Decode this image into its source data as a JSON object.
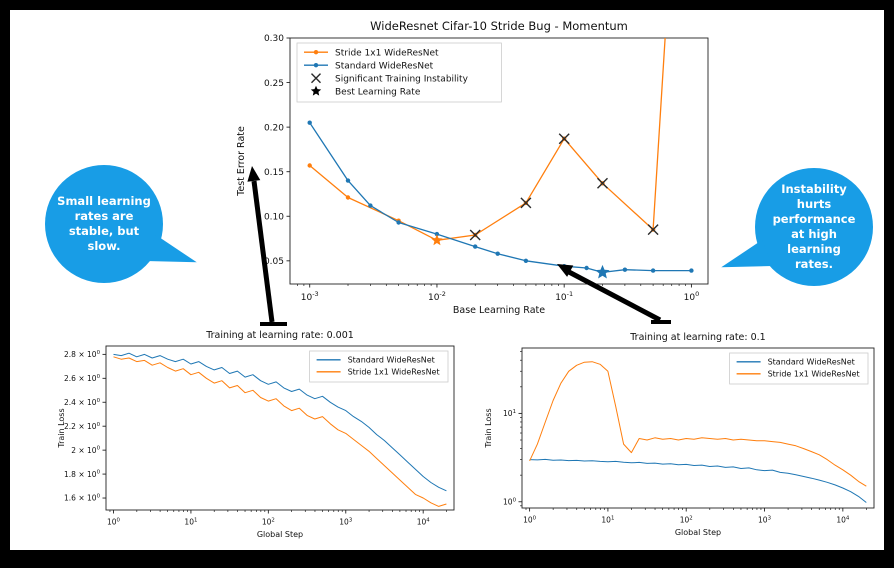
{
  "colors": {
    "stride_orange": "#ff7f0e",
    "standard_blue": "#1f77b4",
    "instability_marker": "#2b2b2b",
    "best_marker": "#000000",
    "bubble": "#189de6",
    "bubble_text": "#ffffff",
    "frame": "#000000",
    "slide_bg": "#ffffff"
  },
  "bubbles": {
    "left": {
      "text": "Small learning rates are stable, but slow."
    },
    "right": {
      "text": "Instability hurts performance at high learning rates."
    }
  },
  "chart_data": [
    {
      "id": "main",
      "type": "line",
      "title": "WideResnet Cifar-10 Stride Bug - Momentum",
      "xlabel": "Base Learning Rate",
      "ylabel": "Test Error Rate",
      "xscale": "log",
      "yscale": "linear",
      "xlim": [
        0.0007,
        1.35
      ],
      "ylim": [
        0.024,
        0.3
      ],
      "xticks": [
        {
          "v": 0.001,
          "exp": "-3"
        },
        {
          "v": 0.01,
          "exp": "-2"
        },
        {
          "v": 0.1,
          "exp": "-1"
        },
        {
          "v": 1,
          "exp": "0"
        }
      ],
      "yticks": [
        {
          "v": 0.05,
          "label": "0.05"
        },
        {
          "v": 0.1,
          "label": "0.10"
        },
        {
          "v": 0.15,
          "label": "0.15"
        },
        {
          "v": 0.2,
          "label": "0.20"
        },
        {
          "v": 0.25,
          "label": "0.25"
        },
        {
          "v": 0.3,
          "label": "0.30"
        }
      ],
      "legend": {
        "pos": "tl",
        "items": [
          {
            "label": "Stride 1x1 WideResNet",
            "color": "#ff7f0e",
            "marker": "dotline"
          },
          {
            "label": "Standard WideResNet",
            "color": "#1f77b4",
            "marker": "dotline"
          },
          {
            "label": "Significant Training Instability",
            "color": "#2b2b2b",
            "marker": "x"
          },
          {
            "label": "Best Learning Rate",
            "color": "#000000",
            "marker": "star"
          }
        ]
      },
      "series": [
        {
          "name": "Stride 1x1 WideResNet",
          "color": "#ff7f0e",
          "marker": "dot",
          "x": [
            0.001,
            0.002,
            0.005,
            0.01,
            0.02,
            0.05,
            0.1,
            0.2,
            0.5,
            0.8
          ],
          "y": [
            0.157,
            0.121,
            0.095,
            0.073,
            0.079,
            0.115,
            0.187,
            0.137,
            0.085,
            0.55
          ]
        },
        {
          "name": "Standard WideResNet",
          "color": "#1f77b4",
          "marker": "dot",
          "x": [
            0.001,
            0.002,
            0.003,
            0.005,
            0.01,
            0.02,
            0.03,
            0.05,
            0.1,
            0.15,
            0.2,
            0.3,
            0.5,
            1.0
          ],
          "y": [
            0.205,
            0.14,
            0.112,
            0.093,
            0.08,
            0.066,
            0.058,
            0.05,
            0.044,
            0.042,
            0.037,
            0.04,
            0.039,
            0.039
          ]
        }
      ],
      "x_markers": [
        [
          0.02,
          0.079
        ],
        [
          0.05,
          0.115
        ],
        [
          0.1,
          0.187
        ],
        [
          0.2,
          0.137
        ],
        [
          0.5,
          0.085
        ]
      ],
      "stars": [
        {
          "x": 0.01,
          "y": 0.073,
          "color": "#ff7f0e",
          "r": 6
        },
        {
          "x": 0.2,
          "y": 0.037,
          "color": "#1f77b4",
          "r": 7.5
        }
      ]
    },
    {
      "id": "lr001",
      "type": "line",
      "title": "Training at learning rate: 0.001",
      "xlabel": "Global Step",
      "ylabel": "Train Loss",
      "xscale": "log",
      "yscale": "linear",
      "xlim": [
        0.8,
        25000
      ],
      "ylim": [
        1.5,
        2.87
      ],
      "xticks": [
        {
          "v": 1,
          "exp": "0"
        },
        {
          "v": 10,
          "exp": "1"
        },
        {
          "v": 100,
          "exp": "2"
        },
        {
          "v": 1000,
          "exp": "3"
        },
        {
          "v": 10000,
          "exp": "4"
        }
      ],
      "yticks": [
        {
          "v": 1.6,
          "mant": "1.6",
          "exp": "0"
        },
        {
          "v": 1.8,
          "mant": "1.8",
          "exp": "0"
        },
        {
          "v": 2.0,
          "mant": "2",
          "exp": "0"
        },
        {
          "v": 2.2,
          "mant": "2.2",
          "exp": "0"
        },
        {
          "v": 2.4,
          "mant": "2.4",
          "exp": "0"
        },
        {
          "v": 2.6,
          "mant": "2.6",
          "exp": "0"
        },
        {
          "v": 2.8,
          "mant": "2.8",
          "exp": "0"
        }
      ],
      "legend": {
        "pos": "tr",
        "items": [
          {
            "label": "Standard WideResNet",
            "color": "#1f77b4",
            "marker": "line"
          },
          {
            "label": "Stride 1x1 WideResNet",
            "color": "#ff7f0e",
            "marker": "line"
          }
        ]
      },
      "x_gen": {
        "start": 0,
        "step": 0.1,
        "count": 44
      },
      "series": [
        {
          "name": "Standard WideResNet",
          "color": "#1f77b4",
          "y": [
            2.8,
            2.79,
            2.81,
            2.78,
            2.8,
            2.77,
            2.79,
            2.76,
            2.74,
            2.76,
            2.72,
            2.74,
            2.7,
            2.67,
            2.69,
            2.64,
            2.66,
            2.61,
            2.63,
            2.58,
            2.55,
            2.57,
            2.52,
            2.49,
            2.51,
            2.46,
            2.43,
            2.45,
            2.4,
            2.36,
            2.33,
            2.28,
            2.24,
            2.19,
            2.13,
            2.08,
            2.02,
            1.96,
            1.9,
            1.84,
            1.78,
            1.73,
            1.69,
            1.66
          ]
        },
        {
          "name": "Stride 1x1 WideResNet",
          "color": "#ff7f0e",
          "y": [
            2.78,
            2.76,
            2.77,
            2.74,
            2.75,
            2.71,
            2.73,
            2.69,
            2.66,
            2.68,
            2.63,
            2.65,
            2.6,
            2.56,
            2.58,
            2.52,
            2.54,
            2.48,
            2.5,
            2.44,
            2.41,
            2.43,
            2.37,
            2.33,
            2.35,
            2.29,
            2.26,
            2.28,
            2.22,
            2.17,
            2.14,
            2.09,
            2.04,
            1.99,
            1.93,
            1.87,
            1.81,
            1.75,
            1.69,
            1.63,
            1.6,
            1.56,
            1.53,
            1.55
          ]
        }
      ]
    },
    {
      "id": "lr01",
      "type": "line",
      "title": "Training at learning rate: 0.1",
      "xlabel": "Global Step",
      "ylabel": "Train Loss",
      "xscale": "log",
      "yscale": "log",
      "xlim": [
        0.8,
        25000
      ],
      "ylim": [
        0.85,
        55
      ],
      "xticks": [
        {
          "v": 1,
          "exp": "0"
        },
        {
          "v": 10,
          "exp": "1"
        },
        {
          "v": 100,
          "exp": "2"
        },
        {
          "v": 1000,
          "exp": "3"
        },
        {
          "v": 10000,
          "exp": "4"
        }
      ],
      "yticks": [
        {
          "v": 1,
          "exp": "0"
        },
        {
          "v": 10,
          "exp": "1"
        }
      ],
      "legend": {
        "pos": "tr",
        "items": [
          {
            "label": "Standard WideResNet",
            "color": "#1f77b4",
            "marker": "line"
          },
          {
            "label": "Stride 1x1 WideResNet",
            "color": "#ff7f0e",
            "marker": "line"
          }
        ]
      },
      "x_gen": {
        "start": 0,
        "step": 0.1,
        "count": 44
      },
      "series": [
        {
          "name": "Standard WideResNet",
          "color": "#1f77b4",
          "y": [
            3.0,
            2.98,
            3.02,
            2.95,
            2.97,
            2.92,
            2.94,
            2.89,
            2.91,
            2.86,
            2.84,
            2.86,
            2.8,
            2.76,
            2.79,
            2.72,
            2.74,
            2.67,
            2.7,
            2.62,
            2.65,
            2.57,
            2.6,
            2.51,
            2.54,
            2.45,
            2.48,
            2.38,
            2.42,
            2.3,
            2.25,
            2.28,
            2.15,
            2.1,
            2.02,
            1.93,
            1.85,
            1.76,
            1.66,
            1.55,
            1.43,
            1.3,
            1.15,
            0.98
          ]
        },
        {
          "name": "Stride 1x1 WideResNet",
          "color": "#ff7f0e",
          "y": [
            2.9,
            4.5,
            8.0,
            14.0,
            22.0,
            30.0,
            35.0,
            38.0,
            38.5,
            36.0,
            30.0,
            12.0,
            4.5,
            3.6,
            5.2,
            5.0,
            5.3,
            5.1,
            5.2,
            5.0,
            5.2,
            5.1,
            5.3,
            5.2,
            5.1,
            5.2,
            5.0,
            5.1,
            5.0,
            4.9,
            4.9,
            4.8,
            4.7,
            4.5,
            4.3,
            4.0,
            3.7,
            3.4,
            3.0,
            2.6,
            2.3,
            2.0,
            1.7,
            1.5
          ]
        }
      ]
    }
  ]
}
